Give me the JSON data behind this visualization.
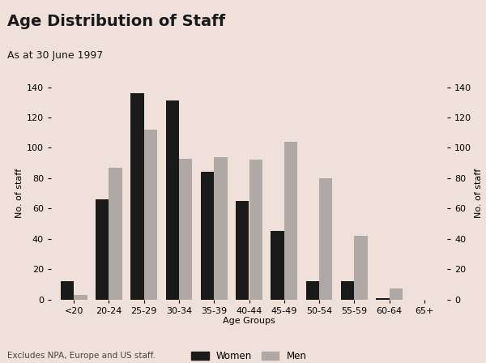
{
  "title": "Age Distribution of Staff",
  "subtitle": "As at 30 June 1997",
  "footnote": "Excludes NPA, Europe and US staff.",
  "xlabel": "Age Groups",
  "ylabel_left": "No. of staff",
  "ylabel_right": "No. of staff",
  "age_groups": [
    "<20",
    "20-24",
    "25-29",
    "30-34",
    "35-39",
    "40-44",
    "45-49",
    "50-54",
    "55-59",
    "60-64",
    "65+"
  ],
  "women": [
    12,
    66,
    136,
    131,
    84,
    65,
    45,
    12,
    12,
    1,
    0
  ],
  "men": [
    3,
    87,
    112,
    93,
    94,
    92,
    104,
    80,
    42,
    7,
    0
  ],
  "bar_color_women": "#1a1a1a",
  "bar_color_men": "#b0a8a5",
  "header_bg": "#d9503a",
  "plot_bg": "#f0e0da",
  "fig_bg": "#f0e0da",
  "title_color": "#1a1a1a",
  "subtitle_color": "#1a1a1a",
  "ylim": [
    0,
    140
  ],
  "yticks": [
    0,
    20,
    40,
    60,
    80,
    100,
    120,
    140
  ],
  "legend_women": "Women",
  "legend_men": "Men",
  "bar_width": 0.38,
  "title_fontsize": 14,
  "subtitle_fontsize": 9,
  "axis_label_fontsize": 8,
  "tick_fontsize": 8,
  "legend_fontsize": 8.5,
  "footnote_fontsize": 7.5
}
